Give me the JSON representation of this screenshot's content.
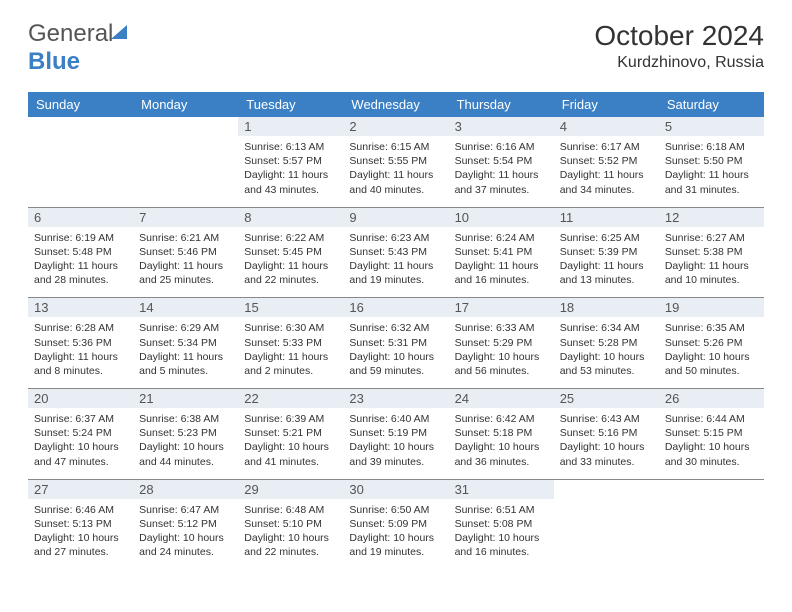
{
  "brand": {
    "word1": "General",
    "word2": "Blue"
  },
  "title": "October 2024",
  "location": "Kurdzhinovo, Russia",
  "colors": {
    "header_bg": "#3b7fc4",
    "header_text": "#ffffff",
    "daynum_bg": "#e8eef4",
    "border": "#888888",
    "body_text": "#333333",
    "logo_gray": "#555555",
    "logo_blue": "#3b7fc4"
  },
  "day_headers": [
    "Sunday",
    "Monday",
    "Tuesday",
    "Wednesday",
    "Thursday",
    "Friday",
    "Saturday"
  ],
  "weeks": [
    [
      {
        "n": "",
        "lines": []
      },
      {
        "n": "",
        "lines": []
      },
      {
        "n": "1",
        "lines": [
          "Sunrise: 6:13 AM",
          "Sunset: 5:57 PM",
          "Daylight: 11 hours and 43 minutes."
        ]
      },
      {
        "n": "2",
        "lines": [
          "Sunrise: 6:15 AM",
          "Sunset: 5:55 PM",
          "Daylight: 11 hours and 40 minutes."
        ]
      },
      {
        "n": "3",
        "lines": [
          "Sunrise: 6:16 AM",
          "Sunset: 5:54 PM",
          "Daylight: 11 hours and 37 minutes."
        ]
      },
      {
        "n": "4",
        "lines": [
          "Sunrise: 6:17 AM",
          "Sunset: 5:52 PM",
          "Daylight: 11 hours and 34 minutes."
        ]
      },
      {
        "n": "5",
        "lines": [
          "Sunrise: 6:18 AM",
          "Sunset: 5:50 PM",
          "Daylight: 11 hours and 31 minutes."
        ]
      }
    ],
    [
      {
        "n": "6",
        "lines": [
          "Sunrise: 6:19 AM",
          "Sunset: 5:48 PM",
          "Daylight: 11 hours and 28 minutes."
        ]
      },
      {
        "n": "7",
        "lines": [
          "Sunrise: 6:21 AM",
          "Sunset: 5:46 PM",
          "Daylight: 11 hours and 25 minutes."
        ]
      },
      {
        "n": "8",
        "lines": [
          "Sunrise: 6:22 AM",
          "Sunset: 5:45 PM",
          "Daylight: 11 hours and 22 minutes."
        ]
      },
      {
        "n": "9",
        "lines": [
          "Sunrise: 6:23 AM",
          "Sunset: 5:43 PM",
          "Daylight: 11 hours and 19 minutes."
        ]
      },
      {
        "n": "10",
        "lines": [
          "Sunrise: 6:24 AM",
          "Sunset: 5:41 PM",
          "Daylight: 11 hours and 16 minutes."
        ]
      },
      {
        "n": "11",
        "lines": [
          "Sunrise: 6:25 AM",
          "Sunset: 5:39 PM",
          "Daylight: 11 hours and 13 minutes."
        ]
      },
      {
        "n": "12",
        "lines": [
          "Sunrise: 6:27 AM",
          "Sunset: 5:38 PM",
          "Daylight: 11 hours and 10 minutes."
        ]
      }
    ],
    [
      {
        "n": "13",
        "lines": [
          "Sunrise: 6:28 AM",
          "Sunset: 5:36 PM",
          "Daylight: 11 hours and 8 minutes."
        ]
      },
      {
        "n": "14",
        "lines": [
          "Sunrise: 6:29 AM",
          "Sunset: 5:34 PM",
          "Daylight: 11 hours and 5 minutes."
        ]
      },
      {
        "n": "15",
        "lines": [
          "Sunrise: 6:30 AM",
          "Sunset: 5:33 PM",
          "Daylight: 11 hours and 2 minutes."
        ]
      },
      {
        "n": "16",
        "lines": [
          "Sunrise: 6:32 AM",
          "Sunset: 5:31 PM",
          "Daylight: 10 hours and 59 minutes."
        ]
      },
      {
        "n": "17",
        "lines": [
          "Sunrise: 6:33 AM",
          "Sunset: 5:29 PM",
          "Daylight: 10 hours and 56 minutes."
        ]
      },
      {
        "n": "18",
        "lines": [
          "Sunrise: 6:34 AM",
          "Sunset: 5:28 PM",
          "Daylight: 10 hours and 53 minutes."
        ]
      },
      {
        "n": "19",
        "lines": [
          "Sunrise: 6:35 AM",
          "Sunset: 5:26 PM",
          "Daylight: 10 hours and 50 minutes."
        ]
      }
    ],
    [
      {
        "n": "20",
        "lines": [
          "Sunrise: 6:37 AM",
          "Sunset: 5:24 PM",
          "Daylight: 10 hours and 47 minutes."
        ]
      },
      {
        "n": "21",
        "lines": [
          "Sunrise: 6:38 AM",
          "Sunset: 5:23 PM",
          "Daylight: 10 hours and 44 minutes."
        ]
      },
      {
        "n": "22",
        "lines": [
          "Sunrise: 6:39 AM",
          "Sunset: 5:21 PM",
          "Daylight: 10 hours and 41 minutes."
        ]
      },
      {
        "n": "23",
        "lines": [
          "Sunrise: 6:40 AM",
          "Sunset: 5:19 PM",
          "Daylight: 10 hours and 39 minutes."
        ]
      },
      {
        "n": "24",
        "lines": [
          "Sunrise: 6:42 AM",
          "Sunset: 5:18 PM",
          "Daylight: 10 hours and 36 minutes."
        ]
      },
      {
        "n": "25",
        "lines": [
          "Sunrise: 6:43 AM",
          "Sunset: 5:16 PM",
          "Daylight: 10 hours and 33 minutes."
        ]
      },
      {
        "n": "26",
        "lines": [
          "Sunrise: 6:44 AM",
          "Sunset: 5:15 PM",
          "Daylight: 10 hours and 30 minutes."
        ]
      }
    ],
    [
      {
        "n": "27",
        "lines": [
          "Sunrise: 6:46 AM",
          "Sunset: 5:13 PM",
          "Daylight: 10 hours and 27 minutes."
        ]
      },
      {
        "n": "28",
        "lines": [
          "Sunrise: 6:47 AM",
          "Sunset: 5:12 PM",
          "Daylight: 10 hours and 24 minutes."
        ]
      },
      {
        "n": "29",
        "lines": [
          "Sunrise: 6:48 AM",
          "Sunset: 5:10 PM",
          "Daylight: 10 hours and 22 minutes."
        ]
      },
      {
        "n": "30",
        "lines": [
          "Sunrise: 6:50 AM",
          "Sunset: 5:09 PM",
          "Daylight: 10 hours and 19 minutes."
        ]
      },
      {
        "n": "31",
        "lines": [
          "Sunrise: 6:51 AM",
          "Sunset: 5:08 PM",
          "Daylight: 10 hours and 16 minutes."
        ]
      },
      {
        "n": "",
        "lines": []
      },
      {
        "n": "",
        "lines": []
      }
    ]
  ]
}
